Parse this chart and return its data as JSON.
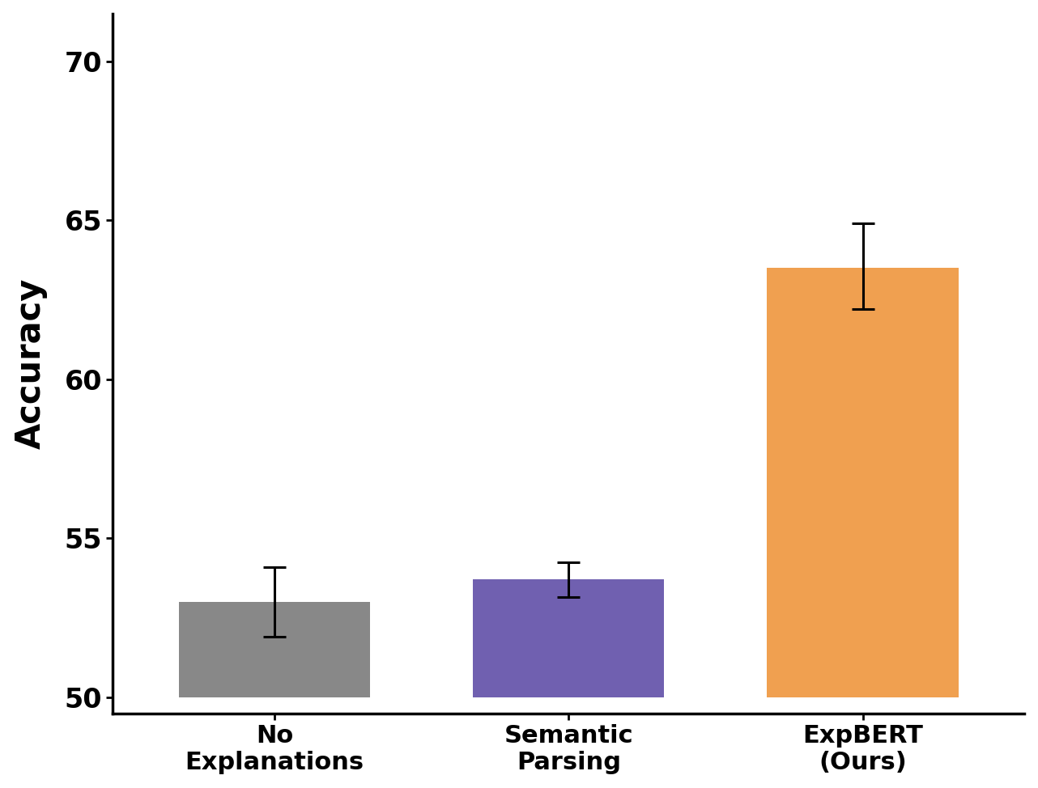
{
  "categories": [
    "No\nExplanations",
    "Semantic\nParsing",
    "ExpBERT\n(Ours)"
  ],
  "values": [
    53.0,
    53.7,
    63.5
  ],
  "errors_upper": [
    1.1,
    0.55,
    1.4
  ],
  "errors_lower": [
    1.1,
    0.55,
    1.3
  ],
  "bar_colors": [
    "#888888",
    "#7060b0",
    "#f0a050"
  ],
  "ylabel": "Accuracy",
  "ylim": [
    49.5,
    71.5
  ],
  "yticks": [
    50,
    55,
    60,
    65,
    70
  ],
  "ymin": 50,
  "background_color": "#ffffff",
  "bar_width": 0.65,
  "capsize": 10,
  "error_linewidth": 2.2,
  "error_capthick": 2.2,
  "tick_fontsize": 24,
  "ylabel_fontsize": 30,
  "xlabel_fontsize": 22
}
